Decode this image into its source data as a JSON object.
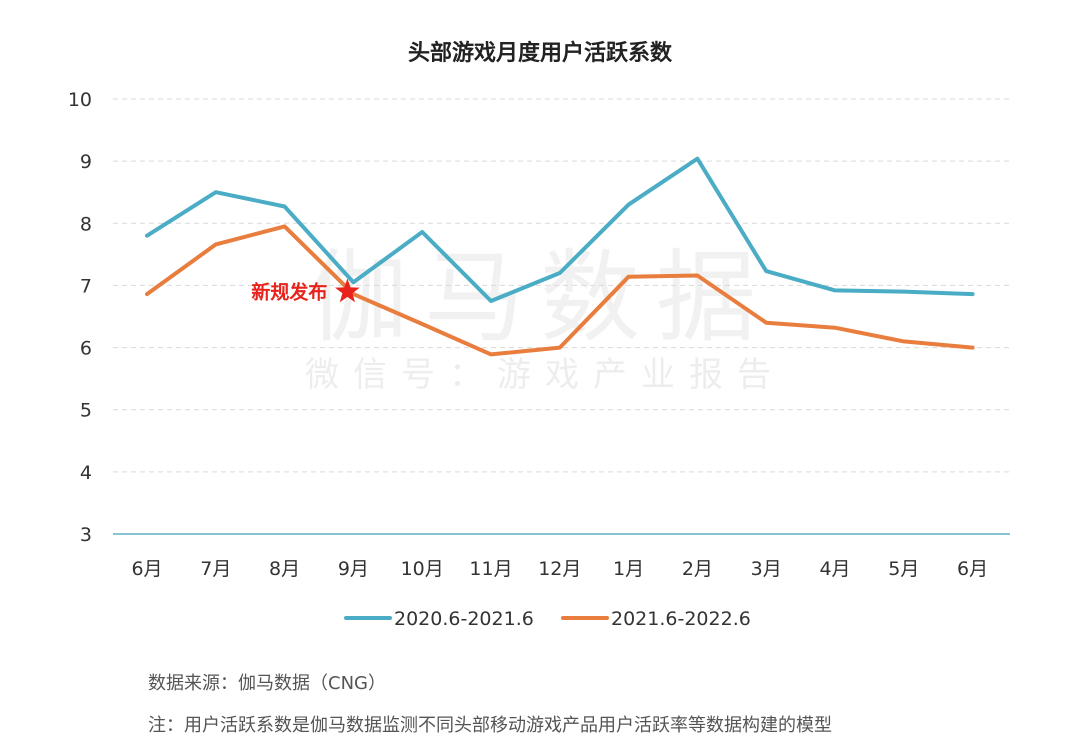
{
  "chart_data": {
    "type": "line",
    "title": "头部游戏月度用户活跃系数",
    "categories": [
      "6月",
      "7月",
      "8月",
      "9月",
      "10月",
      "11月",
      "12月",
      "1月",
      "2月",
      "3月",
      "4月",
      "5月",
      "6月"
    ],
    "yticks": [
      "3",
      "4",
      "5",
      "6",
      "7",
      "8",
      "9",
      "10"
    ],
    "ylim": [
      3,
      10
    ],
    "grid": true,
    "legend_position": "bottom",
    "series": [
      {
        "name": "2020.6-2021.6",
        "color": "#4aacc5",
        "values": [
          7.8,
          8.5,
          8.27,
          7.05,
          7.86,
          6.75,
          7.2,
          8.3,
          9.04,
          7.23,
          6.92,
          6.9,
          6.86
        ]
      },
      {
        "name": "2021.6-2022.6",
        "color": "#e87d3e",
        "values": [
          6.86,
          7.66,
          7.95,
          6.86,
          6.38,
          5.89,
          6.0,
          7.14,
          7.16,
          6.4,
          6.32,
          6.1,
          6.0
        ]
      }
    ],
    "annotation": {
      "text": "新规发布",
      "x_category_index": 3,
      "y": 6.9,
      "marker": "star",
      "color": "#e8231c"
    }
  },
  "watermark": {
    "main": "伽马数据",
    "sub": "微信号：游戏产业报告"
  },
  "notes": {
    "source": "数据来源：伽马数据（CNG）",
    "remark": "注：用户活跃系数是伽马数据监测不同头部移动游戏产品用户活跃率等数据构建的模型"
  }
}
